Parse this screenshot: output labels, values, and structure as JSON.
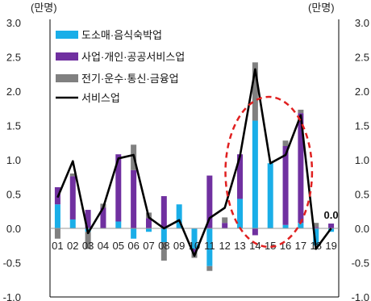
{
  "chart_data": {
    "type": "bar",
    "unit_left": "(만명)",
    "unit_right": "(만명)",
    "categories": [
      "01",
      "02",
      "03",
      "04",
      "05",
      "06",
      "07",
      "08",
      "09",
      "10",
      "11",
      "12",
      "13",
      "14",
      "15",
      "16",
      "17",
      "18",
      "19"
    ],
    "ylim": [
      -1.0,
      3.0
    ],
    "yticks": [
      "3.0",
      "2.5",
      "2.0",
      "1.5",
      "1.0",
      "0.5",
      "0.0",
      "-0.5",
      "-1.0"
    ],
    "series": [
      {
        "name": "도소매·음식숙박업",
        "kind": "bar",
        "color": "#1aaee8",
        "values": [
          0.35,
          0.13,
          -0.05,
          0.0,
          0.1,
          -0.15,
          -0.05,
          -0.2,
          0.35,
          -0.3,
          -0.55,
          0.0,
          0.43,
          1.57,
          0.95,
          0.05,
          0.08,
          -0.25,
          -0.05
        ]
      },
      {
        "name": "사업·개인·공공서비스업",
        "kind": "bar",
        "color": "#7030a0",
        "values": [
          0.25,
          0.63,
          0.27,
          0.3,
          0.98,
          0.85,
          0.15,
          0.47,
          0.0,
          -0.05,
          0.77,
          0.08,
          0.65,
          -0.1,
          0.0,
          1.15,
          1.6,
          0.02,
          0.07
        ]
      },
      {
        "name": "전기·운수·통신·금융업",
        "kind": "bar",
        "color": "#808080",
        "values": [
          -0.15,
          0.04,
          -0.25,
          0.06,
          0.0,
          0.37,
          0.08,
          -0.27,
          0.0,
          -0.08,
          -0.07,
          0.08,
          0.0,
          0.85,
          0.0,
          0.08,
          0.05,
          0.06,
          0.0
        ]
      },
      {
        "name": "서비스업",
        "kind": "line",
        "color": "#000000",
        "values": [
          0.45,
          0.98,
          -0.07,
          0.3,
          1.02,
          1.07,
          0.16,
          0.0,
          0.12,
          -0.4,
          0.15,
          0.3,
          1.05,
          2.32,
          0.95,
          1.07,
          1.65,
          -0.3,
          0.0
        ]
      }
    ],
    "annotations": [
      {
        "text": "0.0",
        "category": "19"
      }
    ],
    "highlight": {
      "shape": "ellipse",
      "style": "red dashed",
      "from_category": "13",
      "to_category": "17"
    },
    "legend_position": "top-left",
    "grid": false
  }
}
